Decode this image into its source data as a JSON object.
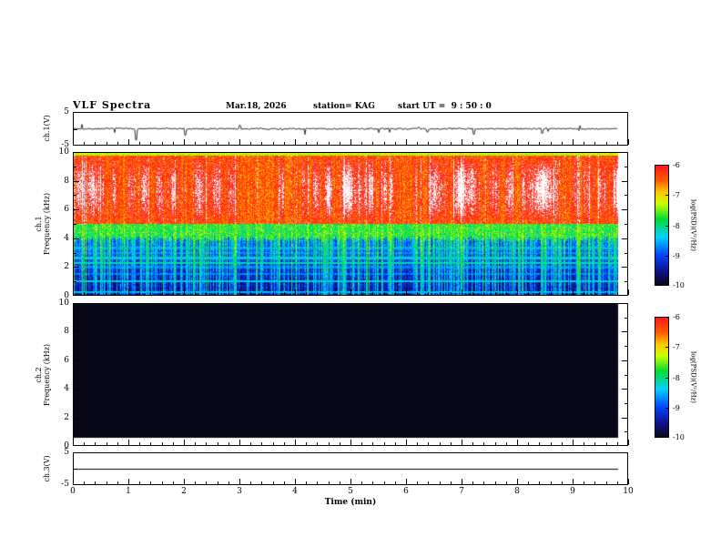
{
  "header": {
    "title": "VLF Spectra",
    "date": "Mar.18, 2026",
    "station": "station= KAG",
    "start_ut": "start UT =  9 : 50 : 0"
  },
  "panels": {
    "ch1_wave": {
      "label": "ch.1(V)",
      "y_top": "5",
      "y_bottom": "-5"
    },
    "ch1_spec": {
      "label_channel": "ch.1",
      "label_freq": "Frequency (kHz)"
    },
    "ch2_spec": {
      "label_channel": "ch.2",
      "label_freq": "Frequency (kHz)"
    },
    "ch3_wave": {
      "label": "ch.3(V)",
      "y_top": "5",
      "y_bottom": "-5"
    }
  },
  "axes": {
    "x": {
      "label": "Time (min)",
      "tick_labels": [
        "0",
        "1",
        "2",
        "3",
        "4",
        "5",
        "6",
        "7",
        "8",
        "9",
        "10"
      ]
    },
    "spec_y": {
      "tick_labels": [
        "10",
        "8",
        "6",
        "4",
        "2",
        "0"
      ]
    }
  },
  "colorbar": {
    "label": "log(PSD)(V²/Hz)",
    "tick_labels": [
      "-6",
      "-7",
      "-8",
      "-9",
      "-10"
    ],
    "zlim": [
      -10,
      -6
    ]
  },
  "chart_data": [
    {
      "type": "line",
      "title": "ch.1 voltage waveform",
      "xlabel": "Time (min)",
      "ylabel": "ch.1(V)",
      "xlim": [
        0,
        10
      ],
      "ylim": [
        -5,
        5
      ],
      "baseline_v": 0,
      "noise_amplitude_v": 0.25,
      "data_end_min": 9.85,
      "notable_spikes": [
        {
          "t": 0.15,
          "v": 1.4
        },
        {
          "t": 1.15,
          "v": -3.5
        },
        {
          "t": 2.05,
          "v": -2.0
        },
        {
          "t": 3.05,
          "v": 1.1
        },
        {
          "t": 4.25,
          "v": -1.8
        },
        {
          "t": 5.6,
          "v": -1.2
        },
        {
          "t": 6.5,
          "v": -1.0
        },
        {
          "t": 7.35,
          "v": -1.7
        },
        {
          "t": 8.6,
          "v": -1.4
        },
        {
          "t": 9.3,
          "v": 1.0
        }
      ]
    },
    {
      "type": "heatmap",
      "title": "ch.1 VLF spectrogram",
      "xlabel": "Time (min)",
      "ylabel": "Frequency (kHz)",
      "xlim": [
        0,
        10
      ],
      "ylim": [
        0,
        10
      ],
      "zlim": [
        -10,
        -6
      ],
      "zlabel": "log(PSD)(V²/Hz)",
      "data_end_min": 9.85,
      "bands": [
        {
          "f_range": [
            5,
            10
          ],
          "level": -6.45,
          "description": "intense broadband emission, red with saturated white vertical patches"
        },
        {
          "f_range": [
            4,
            5
          ],
          "level": -7.7,
          "description": "green-yellow transition band with impulsive red spikes"
        },
        {
          "f_range": [
            0,
            4
          ],
          "level": -9.6,
          "description": "weak blue/black background with dense green vertical sferic streaks"
        }
      ],
      "horizontal_lines": [
        [
          0.2,
          -8.5
        ],
        [
          0.95,
          -8.35
        ],
        [
          1.45,
          -8.8
        ],
        [
          1.95,
          -8.75
        ],
        [
          2.25,
          -8.2
        ],
        [
          2.6,
          -8.35
        ],
        [
          2.95,
          -8.7
        ],
        [
          3.3,
          -8.6
        ]
      ],
      "top_edge_line": {
        "f": 10,
        "level": -7.6
      }
    },
    {
      "type": "heatmap",
      "title": "ch.2 VLF spectrogram",
      "xlabel": "Time (min)",
      "ylabel": "Frequency (kHz)",
      "xlim": [
        0,
        10
      ],
      "ylim": [
        0,
        10
      ],
      "zlim": [
        -10,
        -6
      ],
      "no_data": true,
      "uniform_level": -10,
      "data_end_min": 9.85
    },
    {
      "type": "line",
      "title": "ch.3 voltage waveform",
      "xlabel": "Time (min)",
      "ylabel": "ch.3(V)",
      "xlim": [
        0,
        10
      ],
      "ylim": [
        -5,
        5
      ],
      "constant_v": 0,
      "data_end_min": 9.85
    }
  ]
}
